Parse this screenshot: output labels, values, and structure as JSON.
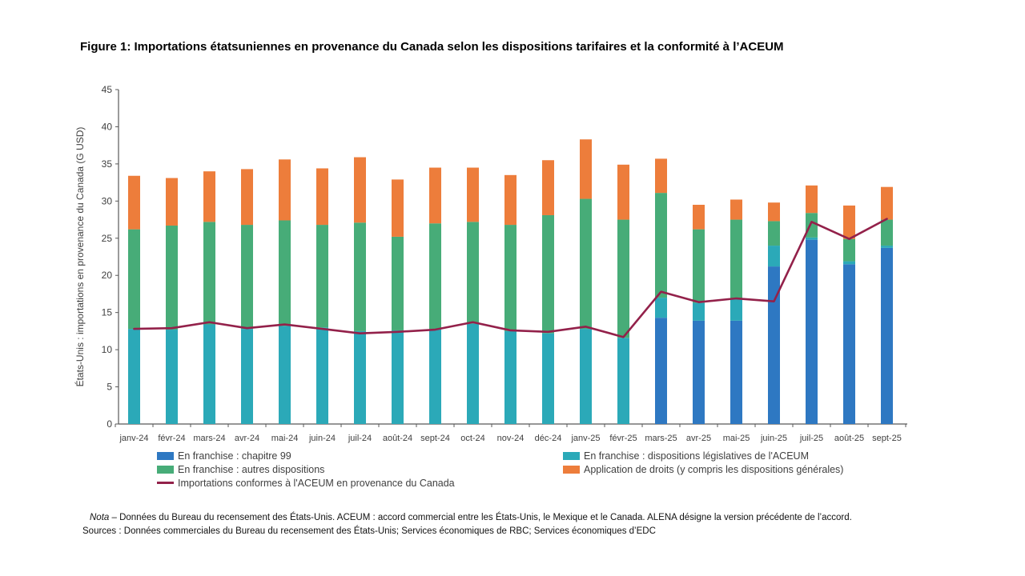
{
  "title": "Figure 1: Importations étatsuniennes en provenance du Canada selon les dispositions tarifaires et la conformité à l’ACEUM",
  "chart_data": {
    "type": "bar",
    "stacked": true,
    "title": "Figure 1: Importations étatsuniennes en provenance du Canada selon les dispositions tarifaires et la conformité à l’ACEUM",
    "xlabel": "",
    "ylabel": "États-Unis : importations en provenance du Canada (G USD)",
    "ylim": [
      0,
      45
    ],
    "ytick_step": 5,
    "grid": false,
    "legend_position": "bottom",
    "categories": [
      "janv-24",
      "févr-24",
      "mars-24",
      "avr-24",
      "mai-24",
      "juin-24",
      "juil-24",
      "août-24",
      "sept-24",
      "oct-24",
      "nov-24",
      "déc-24",
      "janv-25",
      "févr-25",
      "mars-25",
      "avr-25",
      "mai-25",
      "juin-25",
      "juil-25",
      "août-25",
      "sept-25"
    ],
    "series": [
      {
        "name": "En franchise : chapitre 99",
        "color": "#2E78C2",
        "values": [
          0,
          0,
          0,
          0,
          0,
          0,
          0,
          0,
          0,
          0,
          0,
          0,
          0,
          0,
          14.3,
          13.9,
          13.9,
          21.2,
          24.8,
          21.5,
          23.7
        ]
      },
      {
        "name": "En franchise : dispositions législatives de l'ACEUM",
        "color": "#2BA9B8",
        "values": [
          12.8,
          12.7,
          13.4,
          12.8,
          13.2,
          13.0,
          12.5,
          12.6,
          12.8,
          13.5,
          12.5,
          12.2,
          12.8,
          11.6,
          2.7,
          2.4,
          3.0,
          2.8,
          0.3,
          0.4,
          0.3
        ]
      },
      {
        "name": "En franchise : autres dispositions",
        "color": "#47AC78",
        "values": [
          13.4,
          14.0,
          13.8,
          14.0,
          14.2,
          13.8,
          14.6,
          12.6,
          14.2,
          13.7,
          14.3,
          15.9,
          17.5,
          15.9,
          14.1,
          9.9,
          10.6,
          3.3,
          3.3,
          3.0,
          3.5
        ]
      },
      {
        "name": "Application de droits (y compris les dispositions générales)",
        "color": "#ED7D3B",
        "values": [
          7.2,
          6.4,
          6.8,
          7.5,
          8.2,
          7.6,
          8.8,
          7.7,
          7.5,
          7.3,
          6.7,
          7.4,
          8.0,
          7.4,
          4.6,
          3.3,
          2.7,
          2.5,
          3.7,
          4.5,
          4.4
        ]
      }
    ],
    "line_series": {
      "name": "Importations conformes à l'ACEUM en provenance du Canada",
      "color": "#93214A",
      "values": [
        12.8,
        12.9,
        13.7,
        12.9,
        13.4,
        12.8,
        12.2,
        12.4,
        12.7,
        13.7,
        12.6,
        12.4,
        13.1,
        11.7,
        17.8,
        16.4,
        16.9,
        16.5,
        27.2,
        24.9,
        27.6
      ]
    }
  },
  "notes": {
    "nota_label": "Nota",
    "nota_text": " – Données du Bureau du recensement des États-Unis. ACEUM : accord commercial entre les États-Unis, le Mexique et le Canada. ALENA désigne la version précédente de l’accord.",
    "sources": "Sources : Données commerciales du Bureau du recensement des États-Unis; Services économiques de RBC; Services économiques d’EDC"
  }
}
